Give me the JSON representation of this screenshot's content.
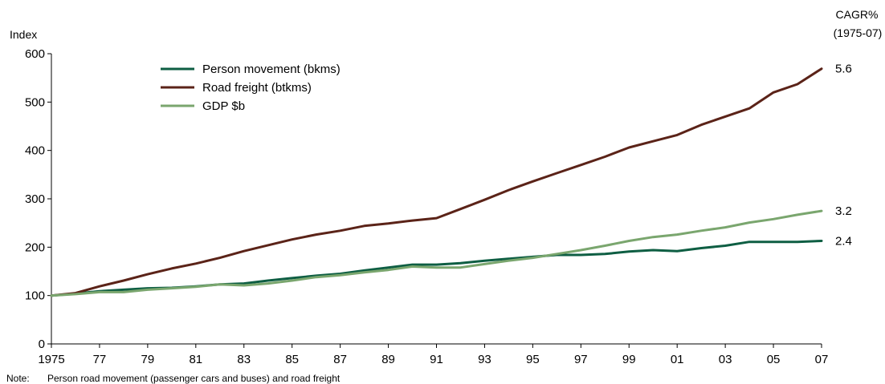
{
  "chart_data": {
    "type": "line",
    "ylabel": "Index",
    "cagr_header": [
      "CAGR%",
      "(1975-07)"
    ],
    "ylim": [
      0,
      600
    ],
    "yticks": [
      0,
      100,
      200,
      300,
      400,
      500,
      600
    ],
    "xlim": [
      1975,
      2007
    ],
    "xticks": [
      {
        "year": 1975,
        "label": "1975"
      },
      {
        "year": 1977,
        "label": "77"
      },
      {
        "year": 1979,
        "label": "79"
      },
      {
        "year": 1981,
        "label": "81"
      },
      {
        "year": 1983,
        "label": "83"
      },
      {
        "year": 1985,
        "label": "85"
      },
      {
        "year": 1987,
        "label": "87"
      },
      {
        "year": 1989,
        "label": "89"
      },
      {
        "year": 1991,
        "label": "91"
      },
      {
        "year": 1993,
        "label": "93"
      },
      {
        "year": 1995,
        "label": "95"
      },
      {
        "year": 1997,
        "label": "97"
      },
      {
        "year": 1999,
        "label": "99"
      },
      {
        "year": 2001,
        "label": "01"
      },
      {
        "year": 2003,
        "label": "03"
      },
      {
        "year": 2005,
        "label": "05"
      },
      {
        "year": 2007,
        "label": "07"
      }
    ],
    "x": [
      1975,
      1976,
      1977,
      1978,
      1979,
      1980,
      1981,
      1982,
      1983,
      1984,
      1985,
      1986,
      1987,
      1988,
      1989,
      1990,
      1991,
      1992,
      1993,
      1994,
      1995,
      1996,
      1997,
      1998,
      1999,
      2000,
      2001,
      2002,
      2003,
      2004,
      2005,
      2006,
      2007
    ],
    "series": [
      {
        "name": "Person movement (bkms)",
        "color": "#0e5e43",
        "end_label": "2.4",
        "values": [
          100,
          104,
          109,
          112,
          115,
          116,
          119,
          123,
          125,
          131,
          136,
          141,
          145,
          152,
          158,
          164,
          164,
          167,
          172,
          176,
          180,
          184,
          184,
          186,
          191,
          194,
          192,
          198,
          203,
          211,
          211,
          211,
          213
        ]
      },
      {
        "name": "Road freight (btkms)",
        "color": "#5b2318",
        "end_label": "5.6",
        "values": [
          100,
          105,
          119,
          131,
          144,
          156,
          166,
          178,
          192,
          204,
          216,
          226,
          234,
          244,
          249,
          255,
          260,
          279,
          298,
          318,
          336,
          353,
          370,
          387,
          406,
          419,
          432,
          453,
          470,
          487,
          520,
          537,
          569
        ]
      },
      {
        "name": "GDP $b",
        "color": "#7aa66e",
        "end_label": "3.2",
        "values": [
          100,
          103,
          107,
          107,
          112,
          115,
          118,
          123,
          121,
          125,
          131,
          138,
          142,
          148,
          153,
          160,
          158,
          158,
          165,
          172,
          178,
          186,
          194,
          203,
          213,
          221,
          226,
          234,
          241,
          251,
          258,
          267,
          275
        ]
      }
    ],
    "legend_position": "top-left",
    "grid": false,
    "note": {
      "label": "Note:",
      "text": "Person road movement (passenger cars and buses) and road freight"
    }
  }
}
